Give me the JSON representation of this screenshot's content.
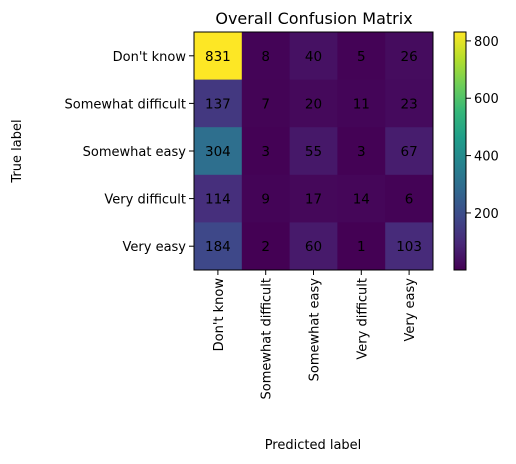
{
  "chart_data": {
    "type": "heatmap",
    "title": "Overall Confusion Matrix",
    "xlabel": "Predicted label",
    "ylabel": "True label",
    "x_categories": [
      "Don't know",
      "Somewhat difficult",
      "Somewhat easy",
      "Very difficult",
      "Very easy"
    ],
    "y_categories": [
      "Don't know",
      "Somewhat difficult",
      "Somewhat easy",
      "Very difficult",
      "Very easy"
    ],
    "values": [
      [
        831,
        8,
        40,
        5,
        26
      ],
      [
        137,
        7,
        20,
        11,
        23
      ],
      [
        304,
        3,
        55,
        3,
        67
      ],
      [
        114,
        9,
        17,
        14,
        6
      ],
      [
        184,
        2,
        60,
        1,
        103
      ]
    ],
    "colorscale": "viridis",
    "colorbar": {
      "range": [
        1,
        831
      ],
      "ticks": [
        200,
        400,
        600,
        800
      ],
      "tick_labels": [
        "200",
        "400",
        "600",
        "800"
      ]
    },
    "colors": {
      "label_on_dark": "#fde725",
      "label_on_light": "#440154"
    }
  }
}
